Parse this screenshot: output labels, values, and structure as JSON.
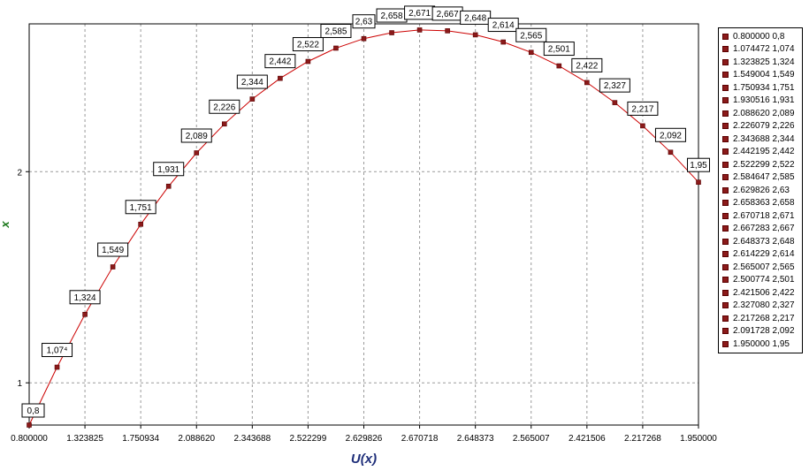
{
  "chart_data": {
    "type": "line",
    "title": "",
    "xlabel": "U(x)",
    "ylabel": "x",
    "ylim": [
      0.8,
      2.7
    ],
    "grid": true,
    "legend_position": "right",
    "line_color": "#cc0000",
    "marker_color": "#8b1a1a",
    "x_tick_labels": [
      "0.800000",
      "1.323825",
      "1.750934",
      "2.088620",
      "2.343688",
      "2.522299",
      "2.629826",
      "2.670718",
      "2.648373",
      "2.565007",
      "2.421506",
      "2.217268",
      "1.950000"
    ],
    "y_ticks": [
      1,
      2
    ],
    "y_tick_labels": [
      "1",
      "2"
    ],
    "points": [
      {
        "u": "0.800000",
        "x": 0.8,
        "label": "0,8",
        "legend": "0.800000 0,8"
      },
      {
        "u": "1.074472",
        "x": 1.074,
        "label": "1,07⁴",
        "legend": "1.074472 1,074"
      },
      {
        "u": "1.323825",
        "x": 1.324,
        "label": "1,324",
        "legend": "1.323825 1,324"
      },
      {
        "u": "1.549004",
        "x": 1.549,
        "label": "1,549",
        "legend": "1.549004 1,549"
      },
      {
        "u": "1.750934",
        "x": 1.751,
        "label": "1,751",
        "legend": "1.750934 1,751"
      },
      {
        "u": "1.930516",
        "x": 1.931,
        "label": "1,931",
        "legend": "1.930516 1,931"
      },
      {
        "u": "2.088620",
        "x": 2.089,
        "label": "2,089",
        "legend": "2.088620 2,089"
      },
      {
        "u": "2.226079",
        "x": 2.226,
        "label": "2,226",
        "legend": "2.226079 2,226"
      },
      {
        "u": "2.343688",
        "x": 2.344,
        "label": "2,344",
        "legend": "2.343688 2,344"
      },
      {
        "u": "2.442195",
        "x": 2.442,
        "label": "2,442",
        "legend": "2.442195 2,442"
      },
      {
        "u": "2.522299",
        "x": 2.522,
        "label": "2,522",
        "legend": "2.522299 2,522"
      },
      {
        "u": "2.584647",
        "x": 2.585,
        "label": "2,585",
        "legend": "2.584647 2,585"
      },
      {
        "u": "2.629826",
        "x": 2.63,
        "label": "2,63",
        "legend": "2.629826 2,63"
      },
      {
        "u": "2.658363",
        "x": 2.658,
        "label": "2,658",
        "legend": "2.658363 2,658"
      },
      {
        "u": "2.670718",
        "x": 2.671,
        "label": "2,671",
        "legend": "2.670718 2,671"
      },
      {
        "u": "2.667283",
        "x": 2.667,
        "label": "2,667",
        "legend": "2.667283 2,667"
      },
      {
        "u": "2.648373",
        "x": 2.648,
        "label": "2,648",
        "legend": "2.648373 2,648"
      },
      {
        "u": "2.614229",
        "x": 2.614,
        "label": "2,614",
        "legend": "2.614229 2,614"
      },
      {
        "u": "2.565007",
        "x": 2.565,
        "label": "2,565",
        "legend": "2.565007 2,565"
      },
      {
        "u": "2.500774",
        "x": 2.501,
        "label": "2,501",
        "legend": "2.500774 2,501"
      },
      {
        "u": "2.421506",
        "x": 2.422,
        "label": "2,422",
        "legend": "2.421506 2,422"
      },
      {
        "u": "2.327080",
        "x": 2.327,
        "label": "2,327",
        "legend": "2.327080 2,327"
      },
      {
        "u": "2.217268",
        "x": 2.217,
        "label": "2,217",
        "legend": "2.217268 2,217"
      },
      {
        "u": "2.091728",
        "x": 2.092,
        "label": "2,092",
        "legend": "2.091728 2,092"
      },
      {
        "u": "1.950000",
        "x": 1.95,
        "label": "1,95",
        "legend": "1.950000 1,95"
      }
    ]
  }
}
